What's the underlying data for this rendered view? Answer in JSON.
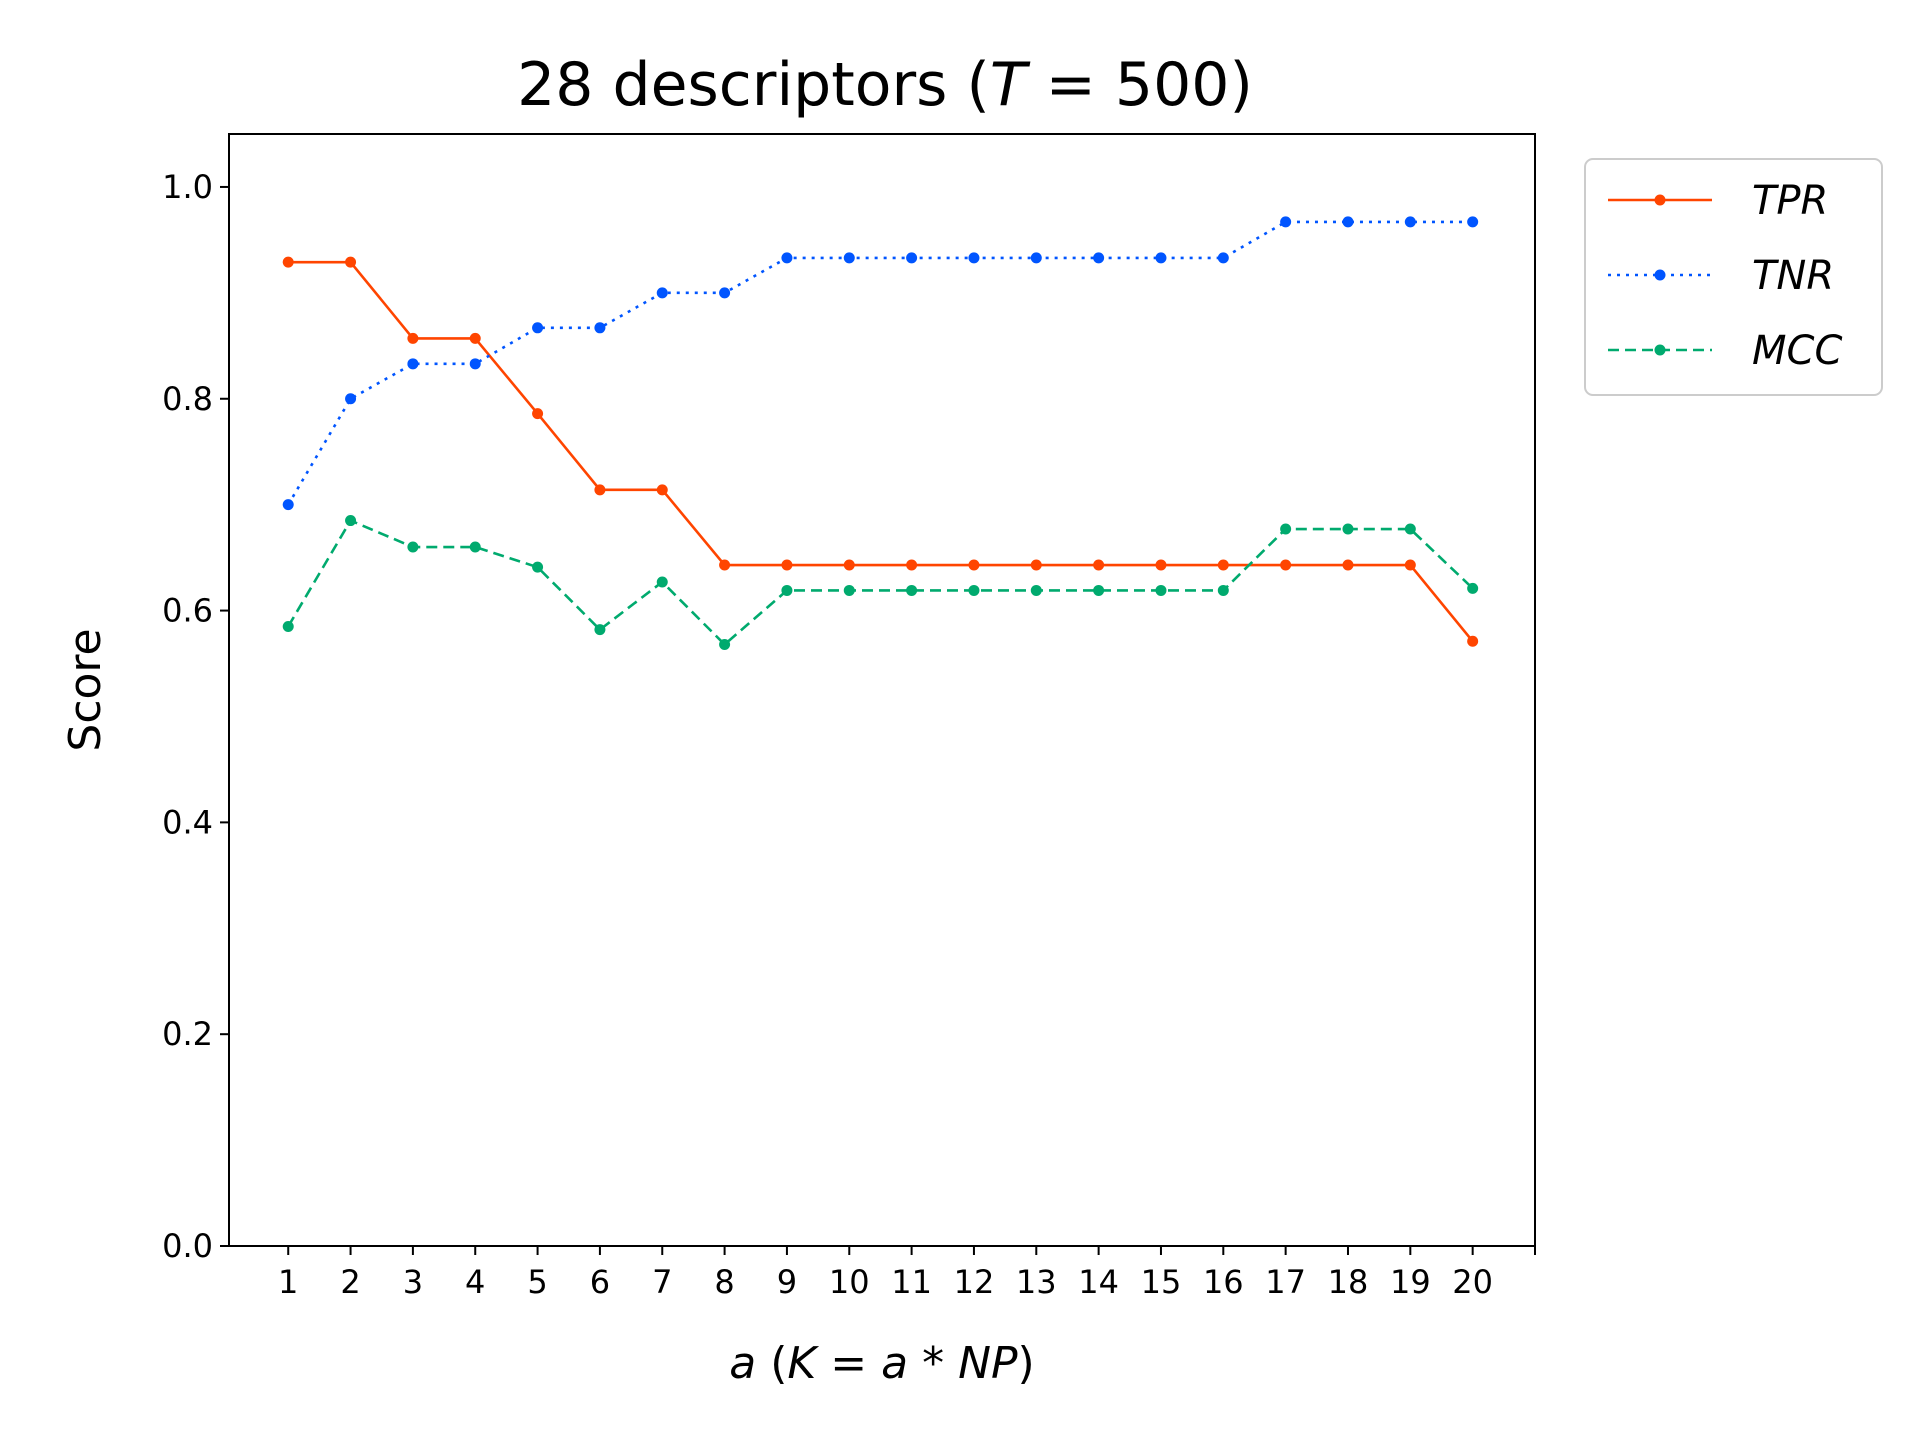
{
  "chart_data": {
    "type": "line",
    "title": {
      "prefix": "28 descriptors (",
      "var": "T",
      "suffix": " = 500)"
    },
    "xlabel": {
      "parts": [
        {
          "text": "a",
          "italic": true
        },
        {
          "text": " (",
          "italic": false
        },
        {
          "text": "K",
          "italic": true
        },
        {
          "text": " = ",
          "italic": false
        },
        {
          "text": "a",
          "italic": true
        },
        {
          "text": " * ",
          "italic": false
        },
        {
          "text": "NP",
          "italic": true
        },
        {
          "text": ")",
          "italic": false
        }
      ]
    },
    "ylabel": "Score",
    "x": [
      1,
      2,
      3,
      4,
      5,
      6,
      7,
      8,
      9,
      10,
      11,
      12,
      13,
      14,
      15,
      16,
      17,
      18,
      19,
      20
    ],
    "x_tick_labels": [
      "1",
      "2",
      "3",
      "4",
      "5",
      "6",
      "7",
      "8",
      "9",
      "10",
      "11",
      "12",
      "13",
      "14",
      "15",
      "16",
      "17",
      "18",
      "19",
      "20"
    ],
    "y_ticks": [
      0.0,
      0.2,
      0.4,
      0.6,
      0.8,
      1.0
    ],
    "y_tick_labels": [
      "0.0",
      "0.2",
      "0.4",
      "0.6",
      "0.8",
      "1.0"
    ],
    "xlim": [
      0.05,
      21.0
    ],
    "ylim": [
      0.0,
      1.05
    ],
    "grid": false,
    "legend_position": "outside top-right",
    "series": [
      {
        "name": "TPR",
        "color": "#ff4500",
        "line_style": "solid",
        "marker": "dot",
        "values": [
          0.929,
          0.929,
          0.857,
          0.857,
          0.786,
          0.714,
          0.714,
          0.643,
          0.643,
          0.643,
          0.643,
          0.643,
          0.643,
          0.643,
          0.643,
          0.643,
          0.643,
          0.643,
          0.643,
          0.571
        ]
      },
      {
        "name": "TNR",
        "color": "#0055ff",
        "line_style": "dotted",
        "marker": "dot",
        "values": [
          0.7,
          0.8,
          0.833,
          0.833,
          0.867,
          0.867,
          0.9,
          0.9,
          0.933,
          0.933,
          0.933,
          0.933,
          0.933,
          0.933,
          0.933,
          0.933,
          0.967,
          0.967,
          0.967,
          0.967
        ]
      },
      {
        "name": "MCC",
        "color": "#00aa6e",
        "line_style": "dashed",
        "marker": "dot",
        "values": [
          0.585,
          0.685,
          0.66,
          0.66,
          0.641,
          0.582,
          0.627,
          0.568,
          0.619,
          0.619,
          0.619,
          0.619,
          0.619,
          0.619,
          0.619,
          0.619,
          0.677,
          0.677,
          0.677,
          0.621
        ]
      }
    ]
  }
}
